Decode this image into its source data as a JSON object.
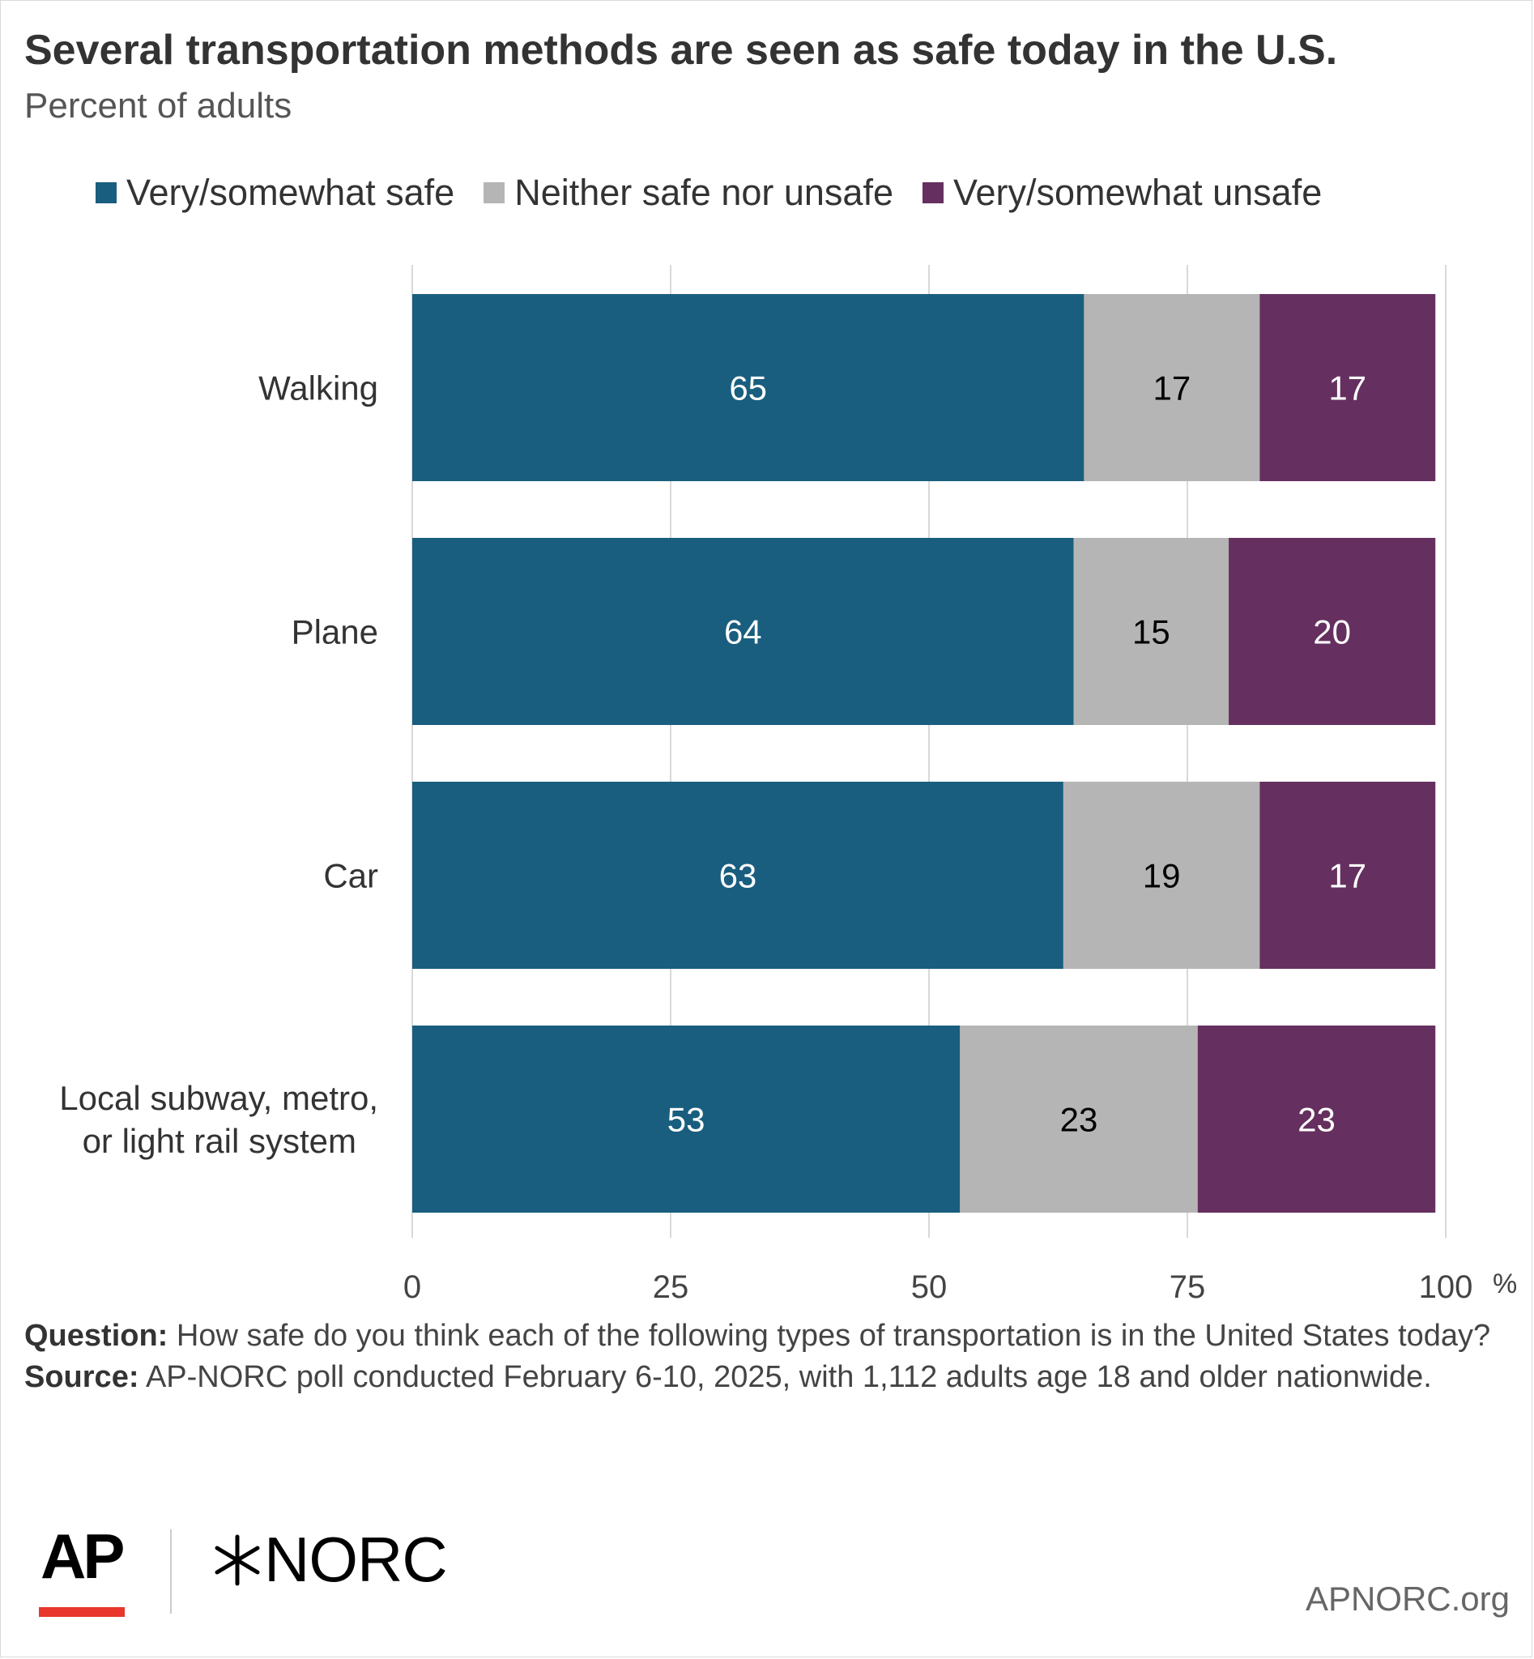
{
  "title": "Several transportation methods are seen as safe today in the U.S.",
  "subtitle": "Percent of adults",
  "legend": [
    {
      "label": "Very/somewhat safe",
      "color": "#195e7e"
    },
    {
      "label": "Neither safe nor unsafe",
      "color": "#b5b5b5"
    },
    {
      "label": "Very/somewhat unsafe",
      "color": "#65305f"
    }
  ],
  "chart_data": {
    "type": "bar",
    "orientation": "horizontal",
    "stacked": true,
    "categories": [
      [
        "Walking"
      ],
      [
        "Plane"
      ],
      [
        "Car"
      ],
      [
        "Local subway, metro,",
        "or light rail system"
      ]
    ],
    "series": [
      {
        "name": "Very/somewhat safe",
        "values": [
          65,
          64,
          63,
          53
        ],
        "color": "#195e7e",
        "label_color": "#ffffff"
      },
      {
        "name": "Neither safe nor unsafe",
        "values": [
          17,
          15,
          19,
          23
        ],
        "color": "#b5b5b5",
        "label_color": "#000000"
      },
      {
        "name": "Very/somewhat unsafe",
        "values": [
          17,
          20,
          17,
          23
        ],
        "color": "#65305f",
        "label_color": "#ffffff"
      }
    ],
    "xlim": [
      0,
      100
    ],
    "xticks": [
      "0",
      "25",
      "50",
      "75",
      "100"
    ],
    "xunit": "%",
    "grid": true,
    "legend_position": "top"
  },
  "footnote": {
    "question_label": "Question:",
    "question_text": " How safe do you think each of the following types of transportation is in the United States today?",
    "source_label": "Source:",
    "source_text": " AP-NORC poll conducted February 6-10, 2025, with 1,112 adults age 18 and older nationwide."
  },
  "branding": {
    "ap_logo": "AP",
    "norc_logo": "NORC",
    "site": "APNORC.org"
  }
}
